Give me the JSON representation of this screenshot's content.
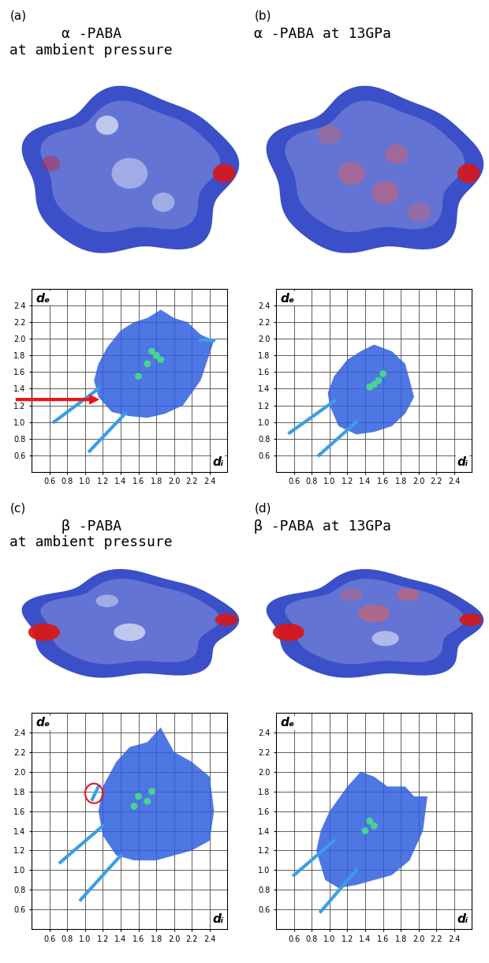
{
  "chart_data": [
    {
      "type": "scatter",
      "label": "(a)",
      "title": "α -PABA\nat ambient pressure",
      "xlabel": "dᵢ",
      "ylabel": "dₑ",
      "grid": true,
      "xlim": [
        0.4,
        2.6
      ],
      "ylim": [
        0.4,
        2.6
      ],
      "xticks": [
        0.6,
        0.8,
        1.0,
        1.2,
        1.4,
        1.6,
        1.8,
        2.0,
        2.2,
        2.4
      ],
      "yticks": [
        0.6,
        0.8,
        1.0,
        1.2,
        1.4,
        1.6,
        1.8,
        2.0,
        2.2,
        2.4
      ],
      "series": [
        {
          "type": "fill",
          "color": "#2f5fe0",
          "x": [
            1.15,
            1.3,
            1.5,
            1.7,
            1.9,
            2.1,
            2.3,
            2.45,
            2.3,
            2.15,
            2.0,
            1.85,
            1.7,
            1.55,
            1.4,
            1.25,
            1.15,
            1.1
          ],
          "y": [
            1.3,
            1.12,
            1.07,
            1.05,
            1.1,
            1.2,
            1.5,
            1.98,
            2.05,
            2.2,
            2.25,
            2.35,
            2.25,
            2.2,
            2.1,
            1.9,
            1.7,
            1.5
          ]
        },
        {
          "type": "line",
          "color": "#3a9ee6",
          "x": [
            0.65,
            1.15
          ],
          "y": [
            1.0,
            1.4
          ]
        },
        {
          "type": "line",
          "color": "#3a9ee6",
          "x": [
            1.05,
            1.45
          ],
          "y": [
            0.65,
            1.1
          ]
        },
        {
          "type": "line",
          "color": "#3a9ee6",
          "x": [
            2.3,
            2.45
          ],
          "y": [
            1.98,
            1.98
          ]
        },
        {
          "type": "scatter",
          "color": "#47d48f",
          "x": [
            1.8,
            1.75,
            1.85,
            1.7,
            1.6
          ],
          "y": [
            1.8,
            1.85,
            1.75,
            1.7,
            1.55
          ]
        }
      ],
      "annotations": [
        {
          "type": "arrow",
          "x": 1.15,
          "y": 1.27,
          "color": "#e8161b"
        }
      ]
    },
    {
      "type": "scatter",
      "label": "(b)",
      "title": "α -PABA at 13GPa",
      "xlabel": "dᵢ",
      "ylabel": "dₑ",
      "grid": true,
      "xlim": [
        0.4,
        2.6
      ],
      "ylim": [
        0.4,
        2.6
      ],
      "xticks": [
        0.6,
        0.8,
        1.0,
        1.2,
        1.4,
        1.6,
        1.8,
        2.0,
        2.2,
        2.4
      ],
      "yticks": [
        0.6,
        0.8,
        1.0,
        1.2,
        1.4,
        1.6,
        1.8,
        2.0,
        2.2,
        2.4
      ],
      "series": [
        {
          "type": "fill",
          "color": "#2f5fe0",
          "x": [
            1.0,
            1.1,
            1.3,
            1.5,
            1.7,
            1.85,
            1.95,
            1.9,
            1.85,
            1.7,
            1.5,
            1.35,
            1.2,
            1.05,
            0.98
          ],
          "y": [
            1.2,
            0.95,
            0.85,
            0.88,
            0.95,
            1.1,
            1.3,
            1.5,
            1.7,
            1.85,
            1.93,
            1.85,
            1.75,
            1.55,
            1.35
          ]
        },
        {
          "type": "line",
          "color": "#3a9ee6",
          "x": [
            0.55,
            1.05
          ],
          "y": [
            0.87,
            1.25
          ]
        },
        {
          "type": "line",
          "color": "#3a9ee6",
          "x": [
            0.88,
            1.3
          ],
          "y": [
            0.6,
            1.0
          ]
        },
        {
          "type": "scatter",
          "color": "#47d48f",
          "x": [
            1.55,
            1.6,
            1.45,
            1.5
          ],
          "y": [
            1.5,
            1.58,
            1.42,
            1.45
          ]
        }
      ]
    },
    {
      "type": "scatter",
      "label": "(c)",
      "title": "β -PABA\nat ambient pressure",
      "xlabel": "dᵢ",
      "ylabel": "dₑ",
      "grid": true,
      "xlim": [
        0.4,
        2.6
      ],
      "ylim": [
        0.4,
        2.6
      ],
      "xticks": [
        0.6,
        0.8,
        1.0,
        1.2,
        1.4,
        1.6,
        1.8,
        2.0,
        2.2,
        2.4
      ],
      "yticks": [
        0.6,
        0.8,
        1.0,
        1.2,
        1.4,
        1.6,
        1.8,
        2.0,
        2.2,
        2.4
      ],
      "series": [
        {
          "type": "fill",
          "color": "#2f5fe0",
          "x": [
            1.2,
            1.35,
            1.55,
            1.8,
            2.0,
            2.2,
            2.4,
            2.45,
            2.4,
            2.2,
            2.0,
            1.85,
            1.7,
            1.5,
            1.35,
            1.2,
            1.15
          ],
          "y": [
            1.35,
            1.15,
            1.1,
            1.1,
            1.15,
            1.2,
            1.3,
            1.6,
            1.95,
            2.1,
            2.2,
            2.45,
            2.3,
            2.25,
            2.1,
            1.85,
            1.6
          ]
        },
        {
          "type": "line",
          "color": "#3a9ee6",
          "x": [
            0.72,
            1.2
          ],
          "y": [
            1.08,
            1.45
          ]
        },
        {
          "type": "line",
          "color": "#3a9ee6",
          "x": [
            0.95,
            1.4
          ],
          "y": [
            0.7,
            1.15
          ]
        },
        {
          "type": "line",
          "color": "#3a9ee6",
          "x": [
            1.08,
            1.15
          ],
          "y": [
            1.72,
            1.85
          ]
        },
        {
          "type": "scatter",
          "color": "#47d48f",
          "x": [
            1.6,
            1.7,
            1.75,
            1.55
          ],
          "y": [
            1.75,
            1.7,
            1.8,
            1.65
          ]
        }
      ],
      "annotations": [
        {
          "type": "circle",
          "x": 1.1,
          "y": 1.78,
          "color": "#e8161b"
        }
      ]
    },
    {
      "type": "scatter",
      "label": "(d)",
      "title": "β -PABA at 13GPa",
      "xlabel": "dᵢ",
      "ylabel": "dₑ",
      "grid": true,
      "xlim": [
        0.4,
        2.6
      ],
      "ylim": [
        0.4,
        2.6
      ],
      "xticks": [
        0.6,
        0.8,
        1.0,
        1.2,
        1.4,
        1.6,
        1.8,
        2.0,
        2.2,
        2.4
      ],
      "yticks": [
        0.6,
        0.8,
        1.0,
        1.2,
        1.4,
        1.6,
        1.8,
        2.0,
        2.2,
        2.4
      ],
      "series": [
        {
          "type": "fill",
          "color": "#2f5fe0",
          "x": [
            0.85,
            0.95,
            1.1,
            1.3,
            1.5,
            1.7,
            1.9,
            2.05,
            2.1,
            1.95,
            1.85,
            1.65,
            1.5,
            1.35,
            1.2,
            1.0,
            0.9
          ],
          "y": [
            1.2,
            0.9,
            0.82,
            0.85,
            0.9,
            0.95,
            1.1,
            1.4,
            1.75,
            1.75,
            1.85,
            1.85,
            1.95,
            2.0,
            1.85,
            1.6,
            1.4
          ]
        },
        {
          "type": "line",
          "color": "#3a9ee6",
          "x": [
            0.6,
            1.05
          ],
          "y": [
            0.95,
            1.3
          ]
        },
        {
          "type": "line",
          "color": "#3a9ee6",
          "x": [
            0.9,
            1.3
          ],
          "y": [
            0.58,
            1.0
          ]
        },
        {
          "type": "scatter",
          "color": "#47d48f",
          "x": [
            1.45,
            1.5,
            1.4
          ],
          "y": [
            1.5,
            1.45,
            1.4
          ]
        }
      ]
    }
  ]
}
